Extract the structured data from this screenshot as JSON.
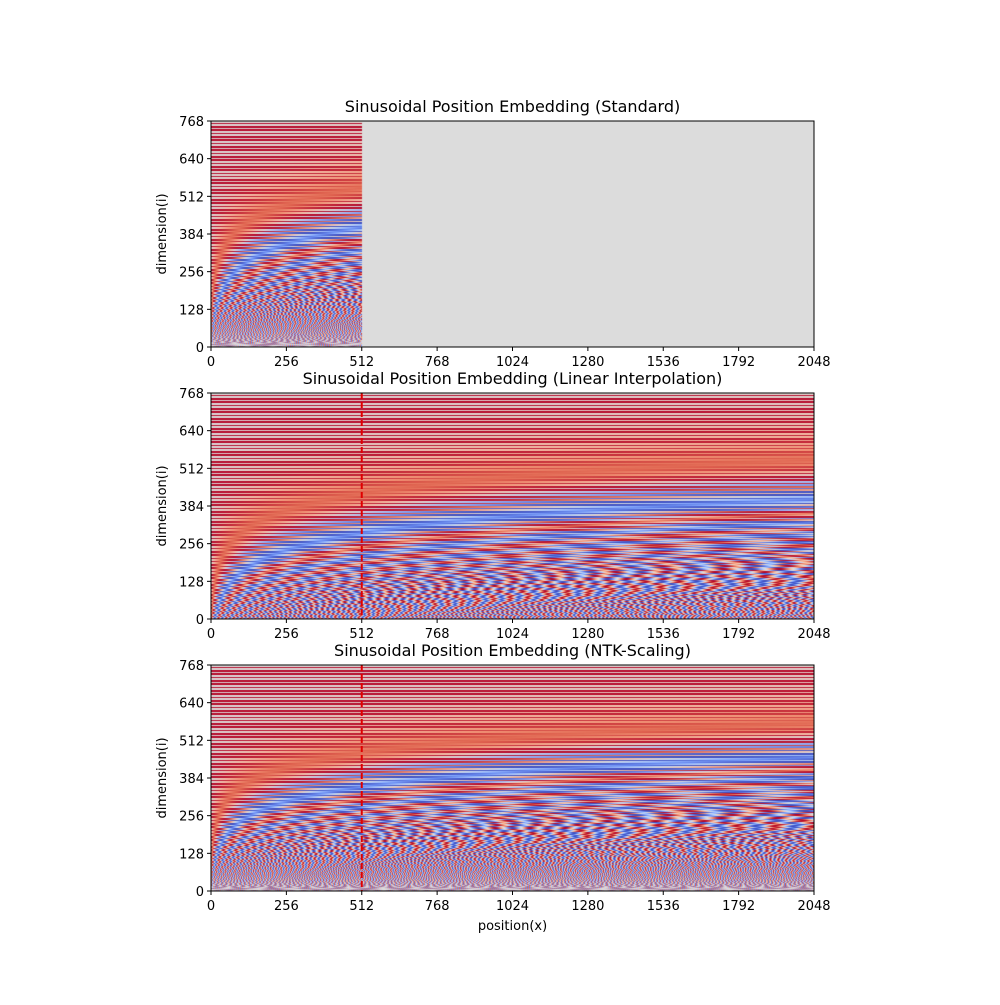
{
  "chart_data": [
    {
      "type": "heatmap",
      "title": "Sinusoidal Position Embedding (Standard)",
      "xlabel": "",
      "ylabel": "dimension(i)",
      "xlim": [
        0,
        2048
      ],
      "ylim": [
        0,
        768
      ],
      "xticks": [
        0,
        256,
        512,
        768,
        1024,
        1280,
        1536,
        1792,
        2048
      ],
      "yticks": [
        0,
        128,
        256,
        384,
        512,
        640,
        768
      ],
      "colormap": "coolwarm",
      "empty_fill": "#dcdcdc",
      "mode": "standard",
      "data_x_max": 512,
      "scale_factor": 1,
      "vline_x": null,
      "vline_color": "#e00000",
      "grid": false
    },
    {
      "type": "heatmap",
      "title": "Sinusoidal Position Embedding (Linear Interpolation)",
      "xlabel": "",
      "ylabel": "dimension(i)",
      "xlim": [
        0,
        2048
      ],
      "ylim": [
        0,
        768
      ],
      "xticks": [
        0,
        256,
        512,
        768,
        1024,
        1280,
        1536,
        1792,
        2048
      ],
      "yticks": [
        0,
        128,
        256,
        384,
        512,
        640,
        768
      ],
      "colormap": "coolwarm",
      "empty_fill": "#dcdcdc",
      "mode": "linear",
      "data_x_max": 2048,
      "scale_factor": 4,
      "vline_x": 512,
      "vline_color": "#e00000",
      "grid": false
    },
    {
      "type": "heatmap",
      "title": "Sinusoidal Position Embedding (NTK-Scaling)",
      "xlabel": "position(x)",
      "ylabel": "dimension(i)",
      "xlim": [
        0,
        2048
      ],
      "ylim": [
        0,
        768
      ],
      "xticks": [
        0,
        256,
        512,
        768,
        1024,
        1280,
        1536,
        1792,
        2048
      ],
      "yticks": [
        0,
        128,
        256,
        384,
        512,
        640,
        768
      ],
      "colormap": "coolwarm",
      "empty_fill": "#dcdcdc",
      "mode": "ntk",
      "data_x_max": 2048,
      "scale_factor": 4,
      "vline_x": 512,
      "vline_color": "#e00000",
      "grid": false
    }
  ]
}
